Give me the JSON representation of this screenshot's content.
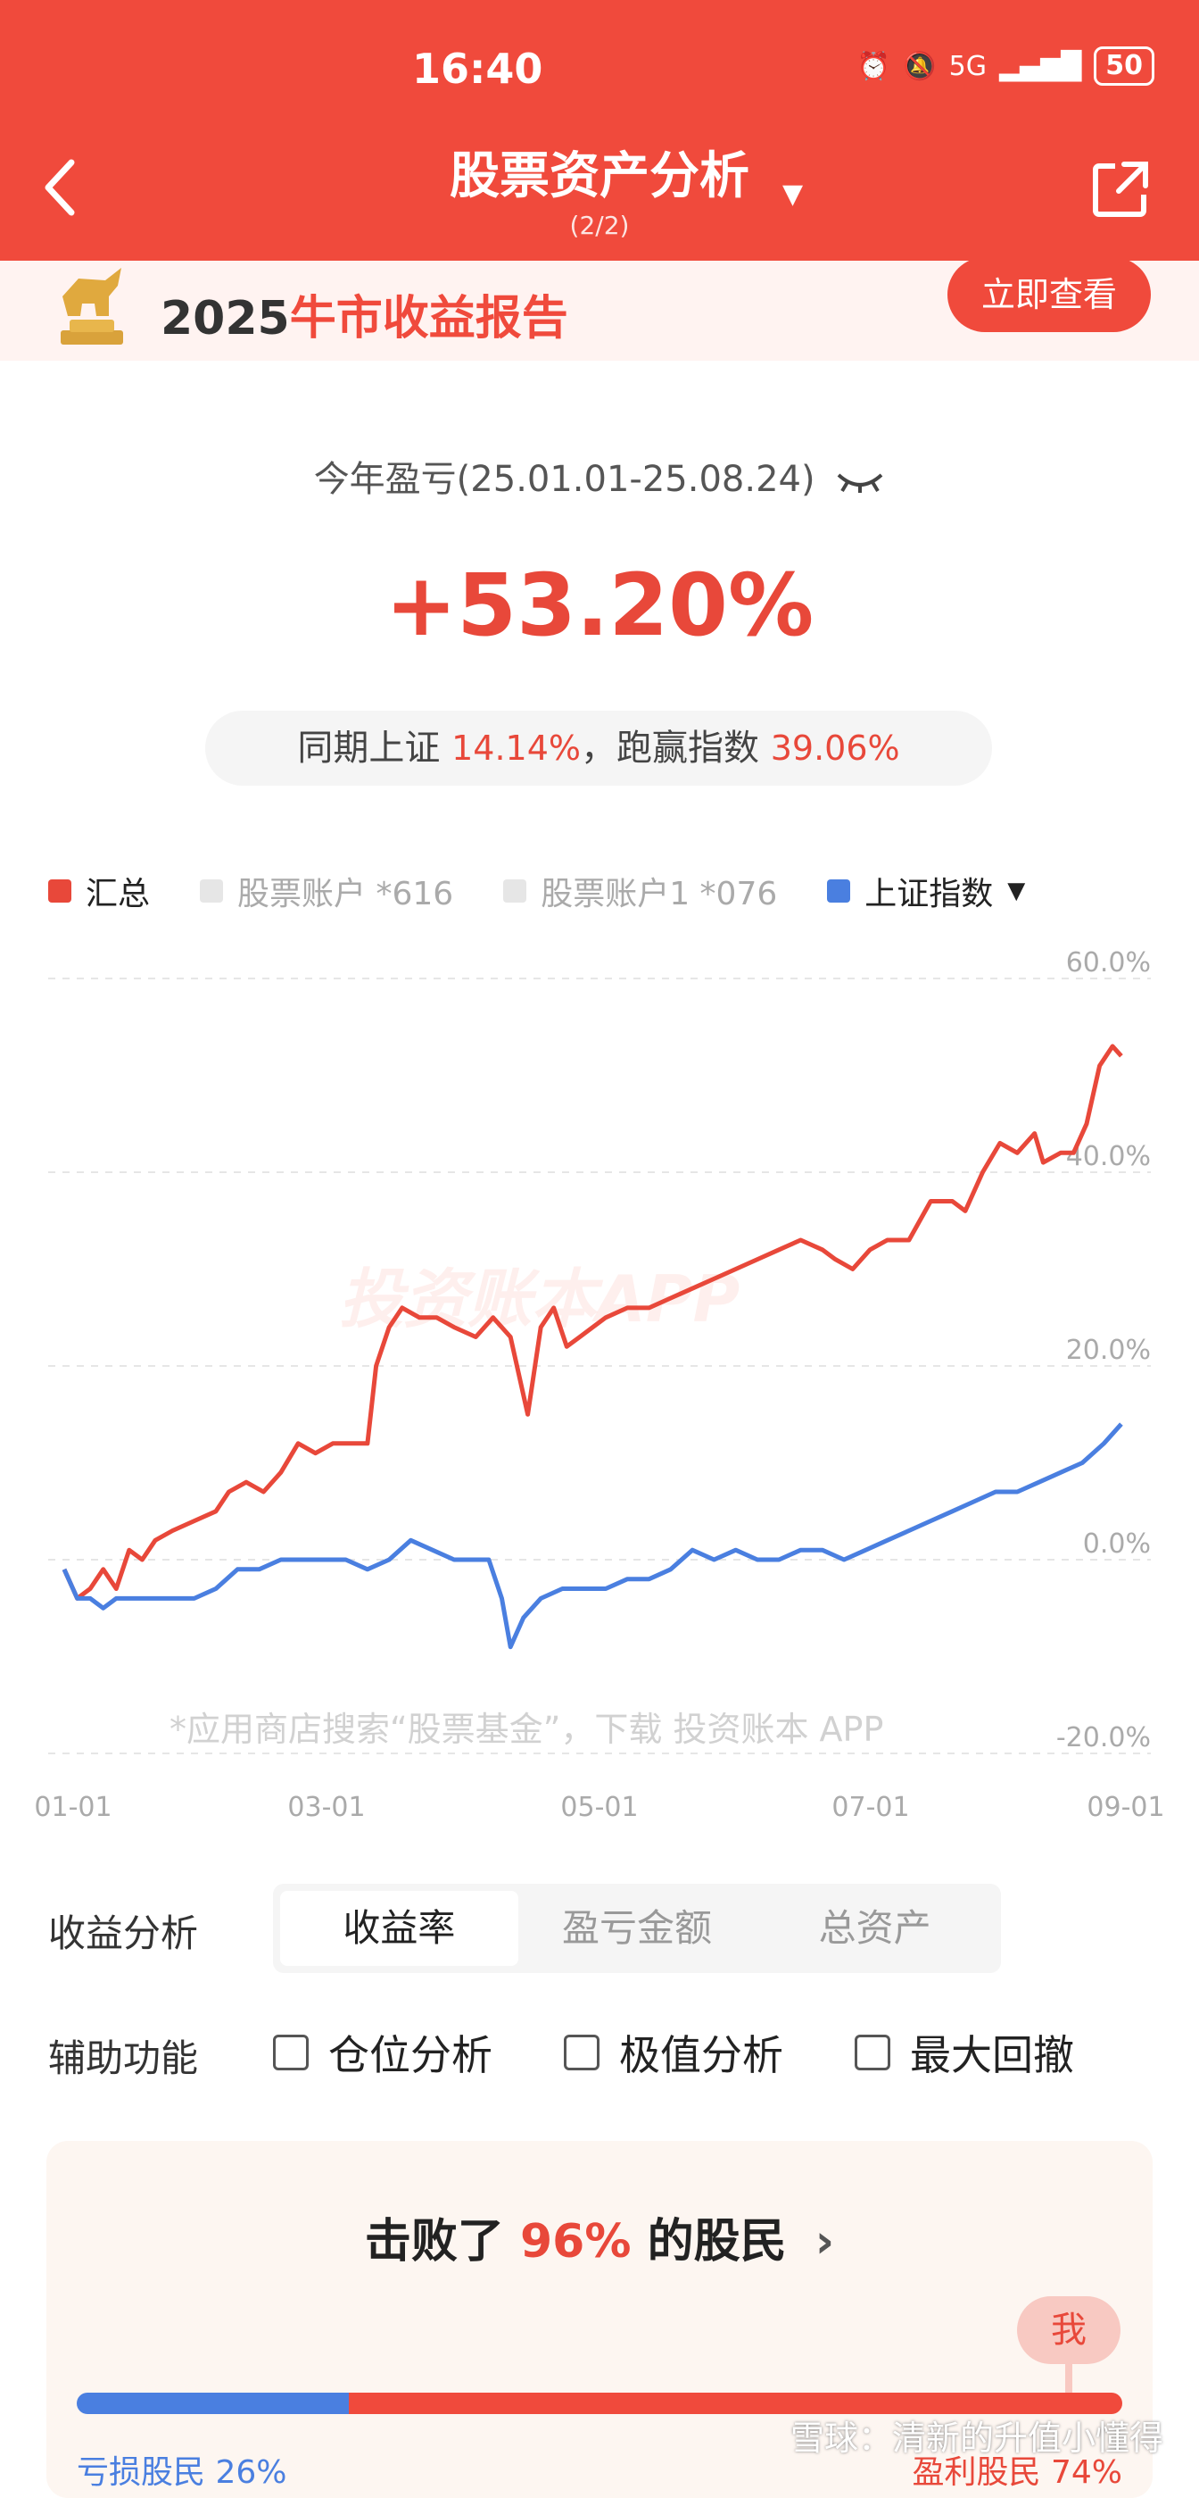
{
  "status": {
    "time": "16:40",
    "network": "5G",
    "battery": "50"
  },
  "nav": {
    "title": "股票资产分析",
    "subtitle": "(2/2)"
  },
  "banner": {
    "year": "2025",
    "title_highlight": "牛市收益报告",
    "button": "立即查看"
  },
  "summary": {
    "period": "今年盈亏(25.01.01-25.08.24)",
    "return_pct": "+53.20%",
    "compare_prefix": "同期上证",
    "index_pct": "14.14%",
    "compare_mid": "，跑赢指数",
    "excess_pct": "39.06%"
  },
  "legend": {
    "total": "汇总",
    "acct1": "股票账户 *616",
    "acct2": "股票账户1 *076",
    "index": "上证指数"
  },
  "colors": {
    "total": "#e8483a",
    "index": "#4a7fe0",
    "muted": "#e6e6e6",
    "brand": "#f04a3c"
  },
  "chart_watermarks": {
    "logo": "投资账本APP",
    "footer": "*应用商店搜索“股票基金”，下载 投资账本 APP"
  },
  "chart_data": {
    "type": "line",
    "x_ticks": [
      "01-01",
      "03-01",
      "05-01",
      "07-01",
      "09-01"
    ],
    "y_ticks": [
      "60.0%",
      "40.0%",
      "20.0%",
      "0.0%",
      "-20.0%"
    ],
    "ylim": [
      -20,
      60
    ],
    "x_range_days": [
      0,
      243
    ],
    "grid": true,
    "series": [
      {
        "name": "汇总",
        "color": "#e8483a",
        "points": [
          [
            0,
            -1
          ],
          [
            3,
            -4
          ],
          [
            6,
            -3
          ],
          [
            9,
            -1
          ],
          [
            12,
            -3
          ],
          [
            15,
            1
          ],
          [
            18,
            0
          ],
          [
            21,
            2
          ],
          [
            25,
            3
          ],
          [
            30,
            4
          ],
          [
            35,
            5
          ],
          [
            38,
            7
          ],
          [
            42,
            8
          ],
          [
            46,
            7
          ],
          [
            50,
            9
          ],
          [
            54,
            12
          ],
          [
            58,
            11
          ],
          [
            62,
            12
          ],
          [
            66,
            12
          ],
          [
            70,
            12
          ],
          [
            72,
            20
          ],
          [
            75,
            24
          ],
          [
            78,
            26
          ],
          [
            82,
            25
          ],
          [
            86,
            25
          ],
          [
            90,
            24
          ],
          [
            95,
            23
          ],
          [
            99,
            25
          ],
          [
            103,
            23
          ],
          [
            107,
            15
          ],
          [
            110,
            24
          ],
          [
            113,
            26
          ],
          [
            116,
            22
          ],
          [
            119,
            23
          ],
          [
            122,
            24
          ],
          [
            125,
            25
          ],
          [
            130,
            26
          ],
          [
            135,
            26
          ],
          [
            140,
            27
          ],
          [
            145,
            28
          ],
          [
            150,
            29
          ],
          [
            155,
            30
          ],
          [
            160,
            31
          ],
          [
            165,
            32
          ],
          [
            170,
            33
          ],
          [
            175,
            32
          ],
          [
            178,
            31
          ],
          [
            182,
            30
          ],
          [
            186,
            32
          ],
          [
            190,
            33
          ],
          [
            195,
            33
          ],
          [
            200,
            37
          ],
          [
            205,
            37
          ],
          [
            208,
            36
          ],
          [
            212,
            40
          ],
          [
            216,
            43
          ],
          [
            220,
            42
          ],
          [
            224,
            44
          ],
          [
            226,
            41
          ],
          [
            230,
            42
          ],
          [
            233,
            42
          ],
          [
            236,
            45
          ],
          [
            239,
            51
          ],
          [
            242,
            53
          ],
          [
            244,
            52
          ]
        ]
      },
      {
        "name": "上证指数",
        "color": "#4a7fe0",
        "points": [
          [
            0,
            -1
          ],
          [
            3,
            -4
          ],
          [
            6,
            -4
          ],
          [
            9,
            -5
          ],
          [
            12,
            -4
          ],
          [
            15,
            -4
          ],
          [
            20,
            -4
          ],
          [
            25,
            -4
          ],
          [
            30,
            -4
          ],
          [
            35,
            -3
          ],
          [
            40,
            -1
          ],
          [
            45,
            -1
          ],
          [
            50,
            0
          ],
          [
            55,
            0
          ],
          [
            60,
            0
          ],
          [
            65,
            0
          ],
          [
            70,
            -1
          ],
          [
            75,
            0
          ],
          [
            80,
            2
          ],
          [
            85,
            1
          ],
          [
            90,
            0
          ],
          [
            95,
            0
          ],
          [
            98,
            0
          ],
          [
            101,
            -4
          ],
          [
            103,
            -9
          ],
          [
            106,
            -6
          ],
          [
            110,
            -4
          ],
          [
            115,
            -3
          ],
          [
            120,
            -3
          ],
          [
            125,
            -3
          ],
          [
            130,
            -2
          ],
          [
            135,
            -2
          ],
          [
            140,
            -1
          ],
          [
            145,
            1
          ],
          [
            150,
            0
          ],
          [
            155,
            1
          ],
          [
            160,
            0
          ],
          [
            165,
            0
          ],
          [
            170,
            1
          ],
          [
            175,
            1
          ],
          [
            180,
            0
          ],
          [
            185,
            1
          ],
          [
            190,
            2
          ],
          [
            195,
            3
          ],
          [
            200,
            4
          ],
          [
            205,
            5
          ],
          [
            210,
            6
          ],
          [
            215,
            7
          ],
          [
            220,
            7
          ],
          [
            225,
            8
          ],
          [
            230,
            9
          ],
          [
            235,
            10
          ],
          [
            240,
            12
          ],
          [
            244,
            14
          ]
        ]
      }
    ]
  },
  "analysis": {
    "label": "收益分析",
    "tabs": [
      "收益率",
      "盈亏金额",
      "总资产"
    ],
    "active_tab": 0
  },
  "aux": {
    "label": "辅助功能",
    "options": [
      "仓位分析",
      "极值分析",
      "最大回撤"
    ]
  },
  "rank": {
    "prefix": "击败了",
    "pct": "96%",
    "suffix": "的股民",
    "me": "我",
    "lose_label": "亏损股民 26%",
    "win_label": "盈利股民 74%",
    "lose_fraction": 0.26,
    "me_fraction": 0.96
  },
  "footer_watermark": "雪球：清新的升值小懂得"
}
